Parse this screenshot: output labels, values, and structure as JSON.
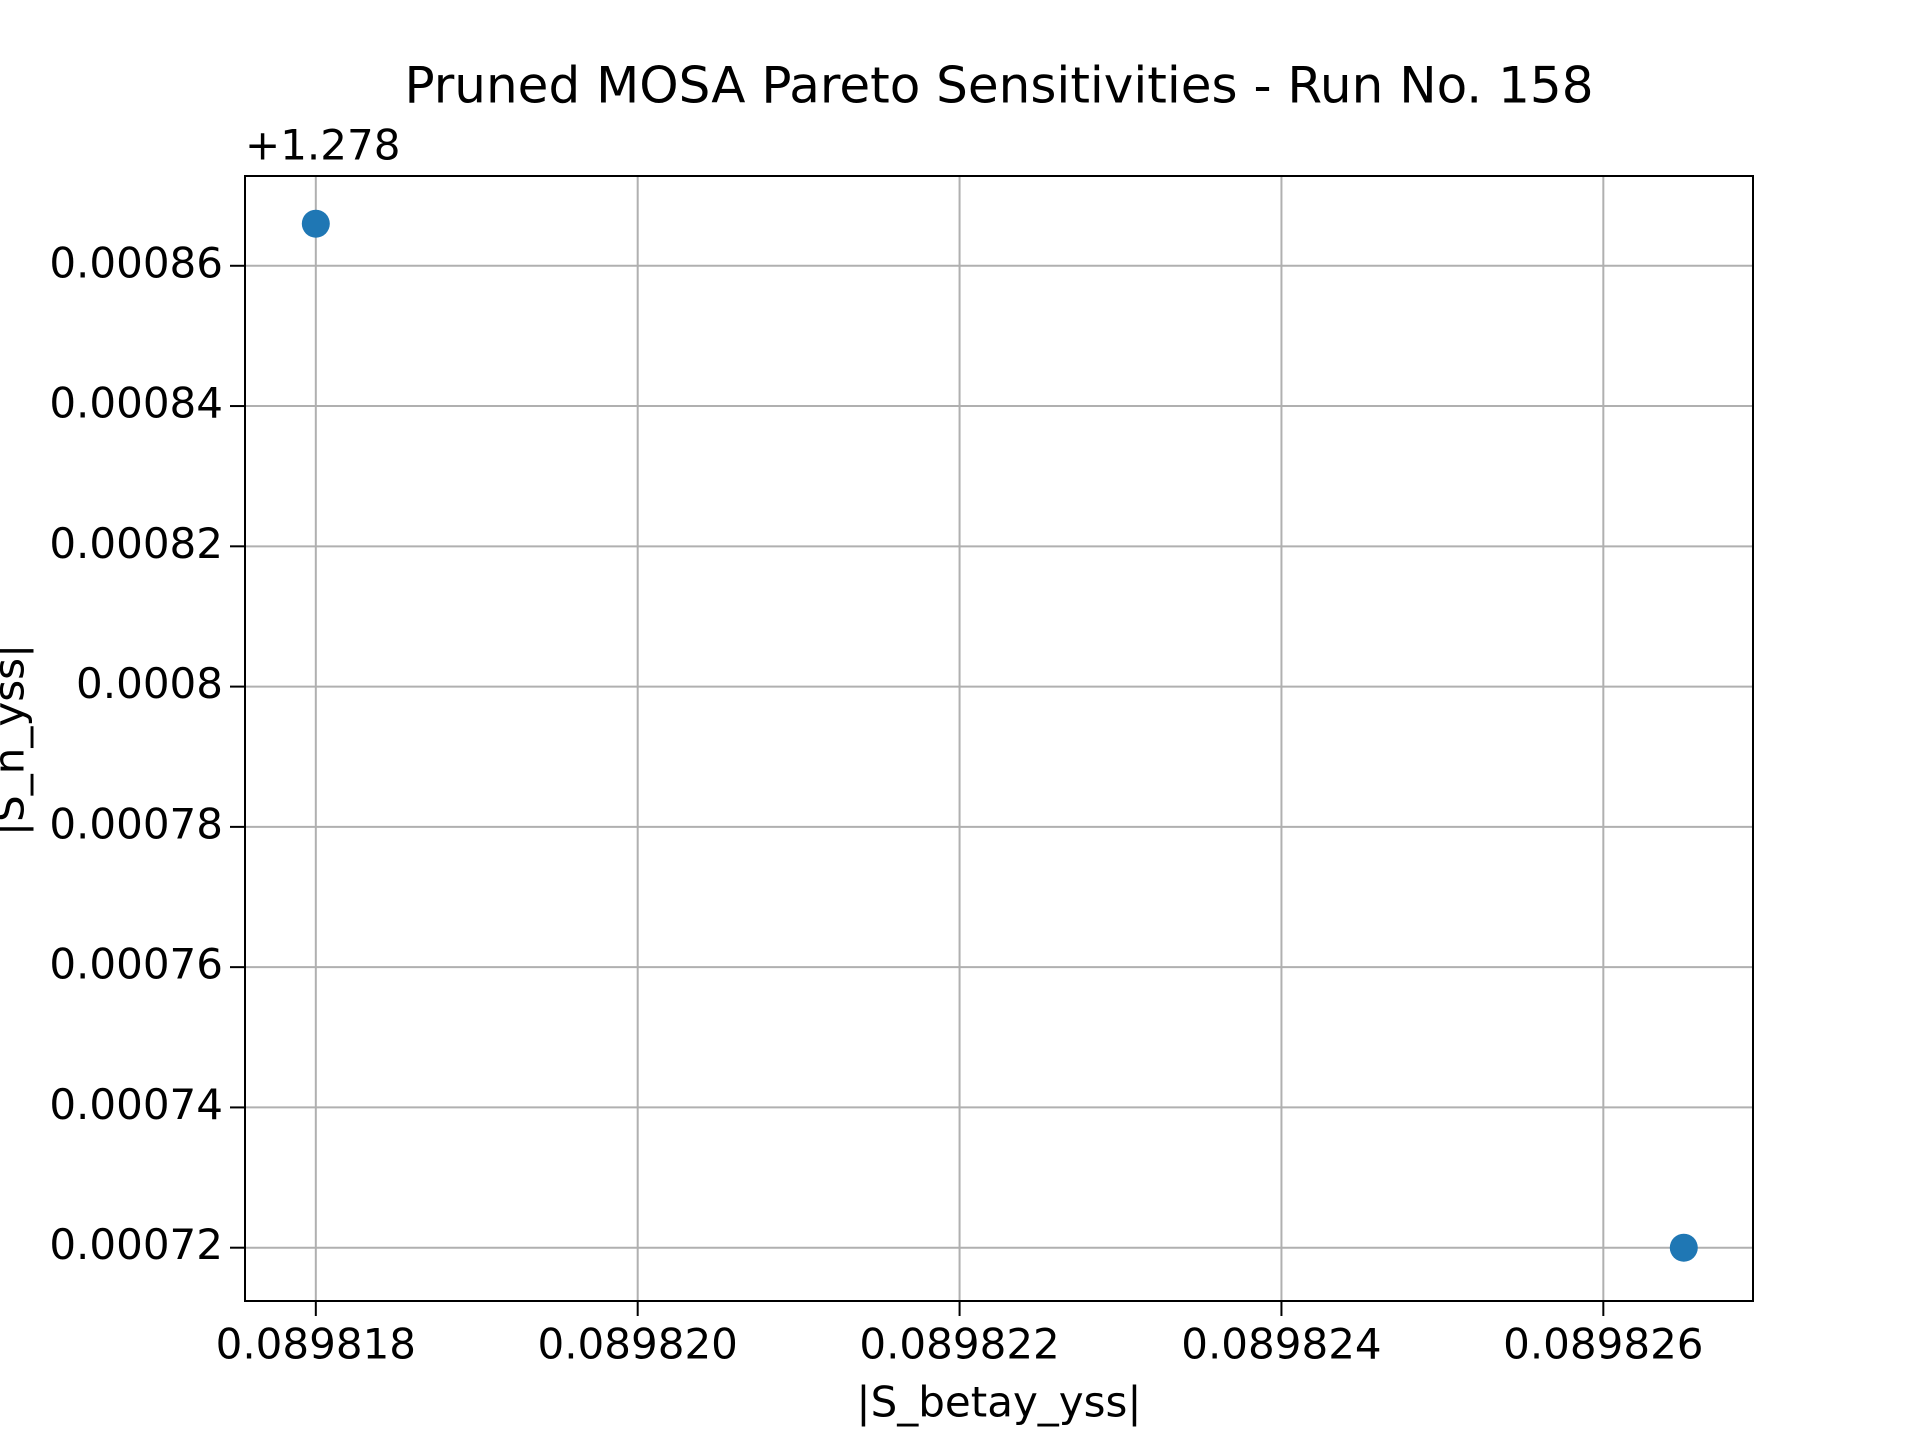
{
  "chart_data": {
    "type": "scatter",
    "title": "Pruned MOSA Pareto Sensitivities - Run No. 158",
    "x_label": "|S_betay_yss|",
    "y_label": "|S_n_yss|",
    "y_offset_label": "+1.278",
    "x": [
      0.089818,
      0.0898265
    ],
    "series": [
      {
        "color": "#1f77b4",
        "values": [
          0.000866,
          0.00072
        ]
      }
    ],
    "xlim": [
      0.08981756,
      0.08982693
    ],
    "ylim": [
      0.0007124,
      0.0008728
    ],
    "xticks": [
      0.089818,
      {
        "value": 0.08982,
        "label": "0.089820"
      },
      0.089822,
      0.089824,
      0.089826
    ],
    "yticks": [
      0.00072,
      0.00074,
      0.00076,
      0.00078,
      0.0008,
      0.00082,
      0.00084,
      0.00086
    ],
    "grid": true
  }
}
